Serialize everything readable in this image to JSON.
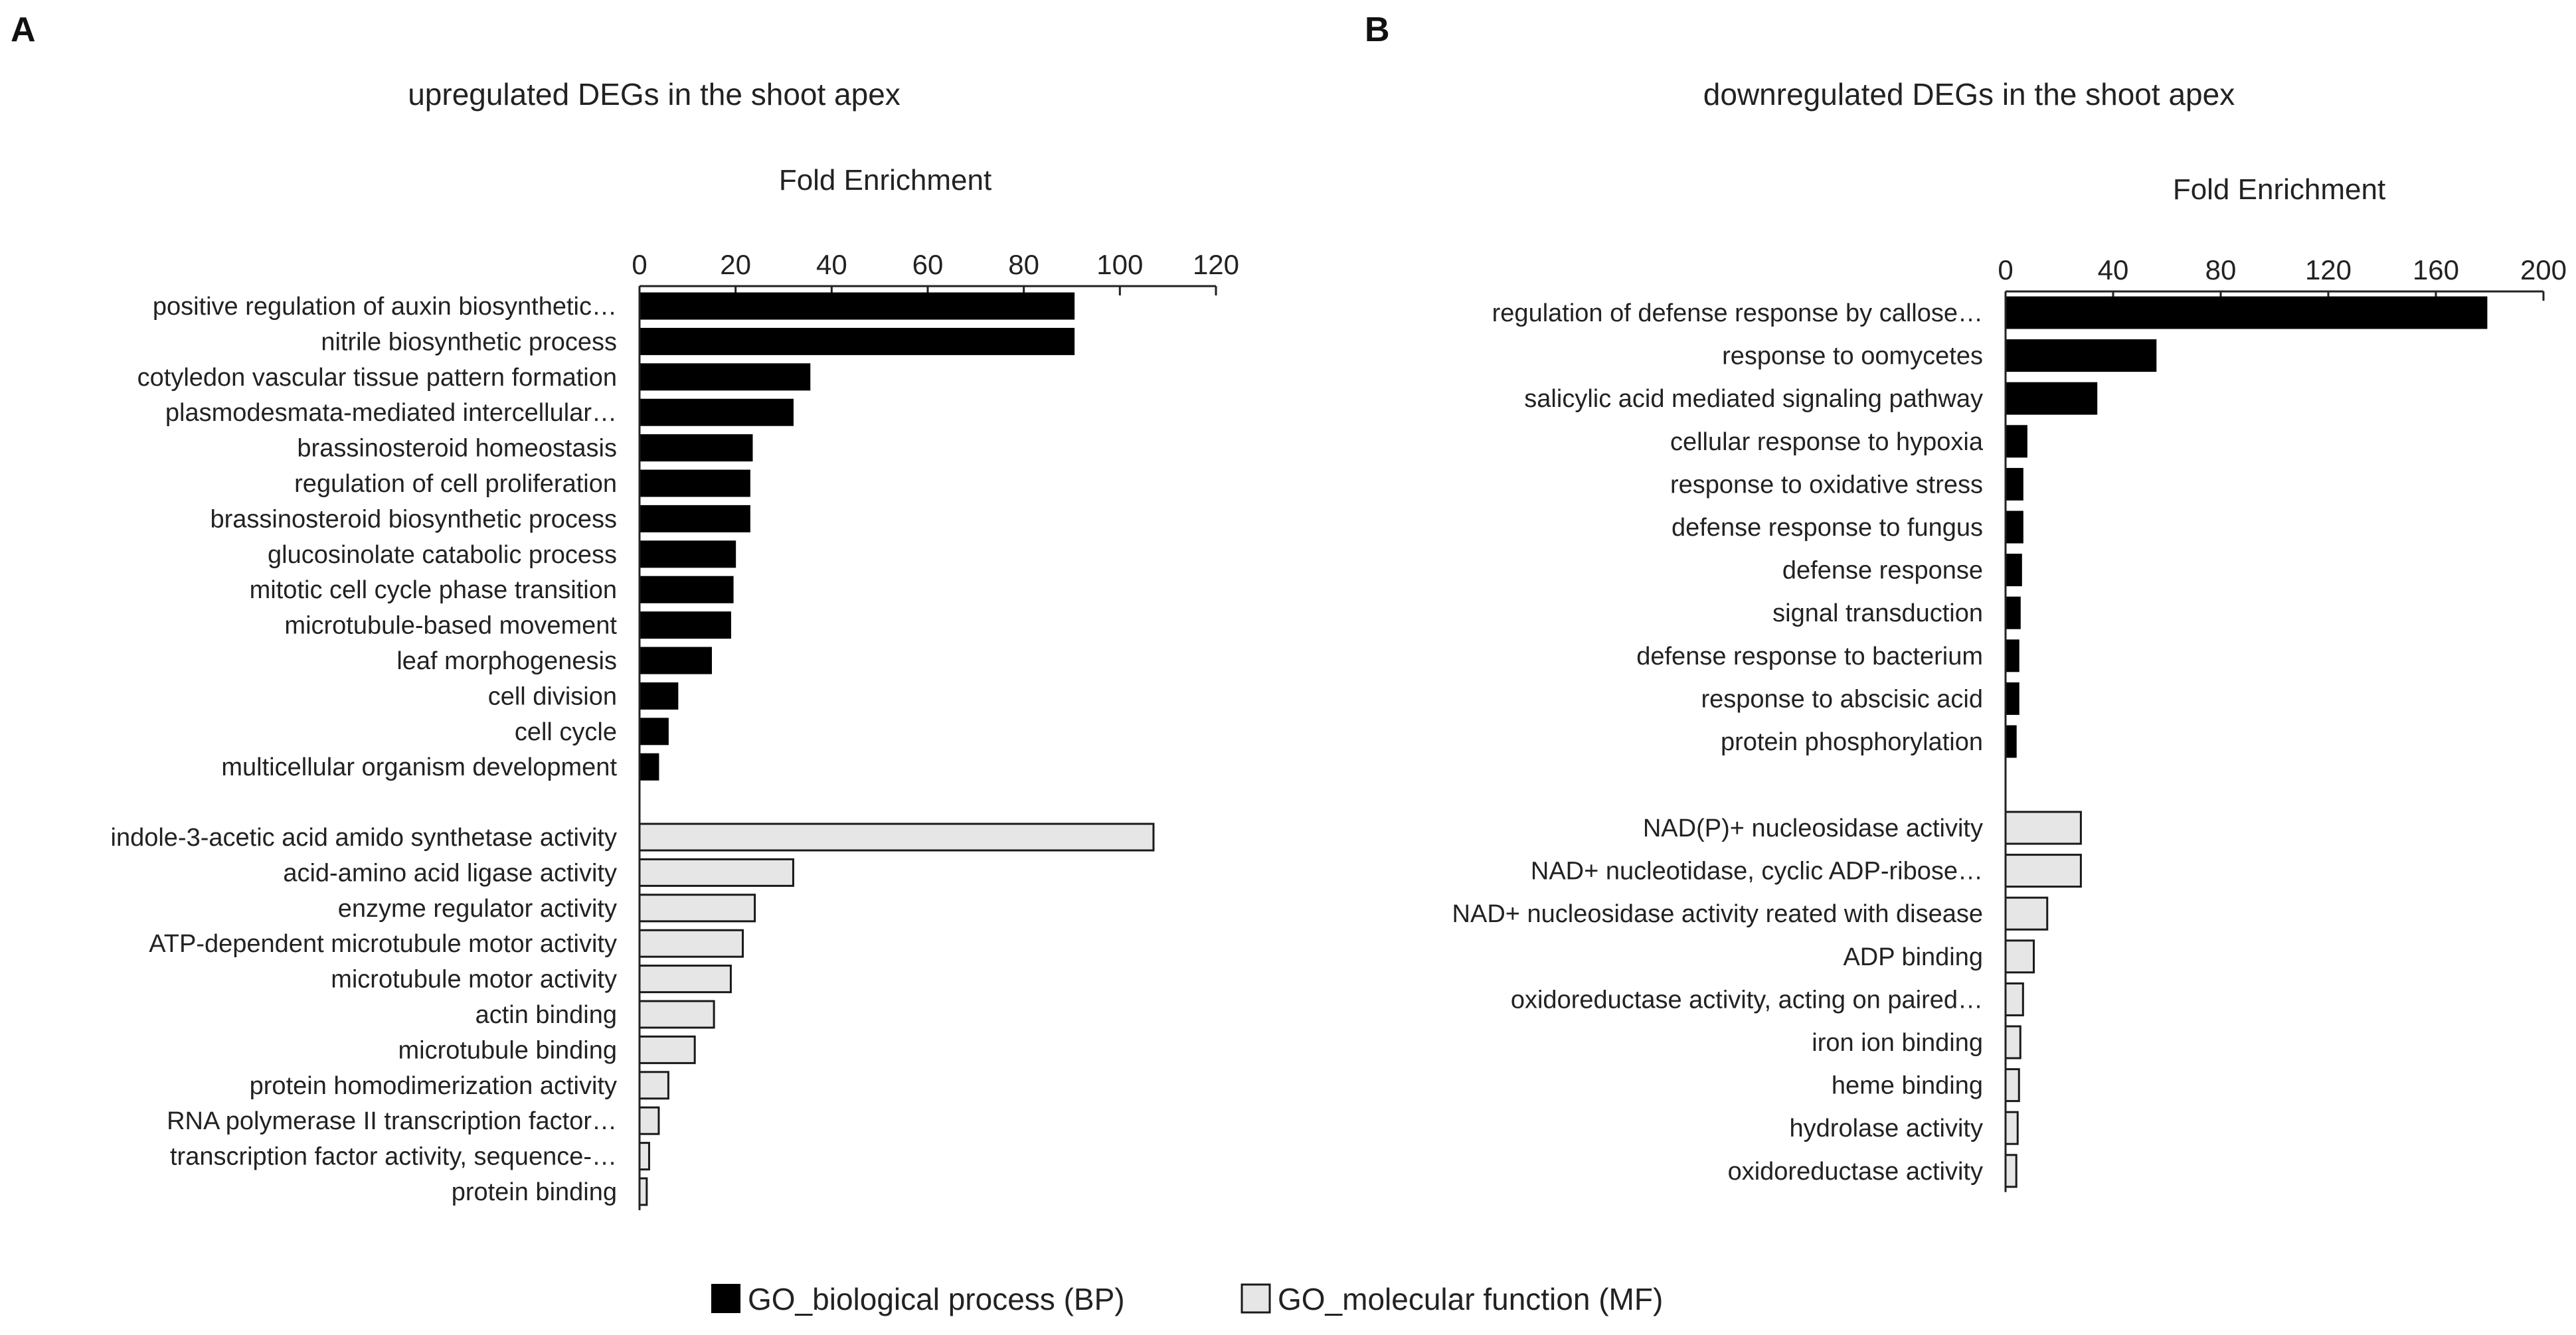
{
  "legend": {
    "bp_label": "GO_biological process (BP)",
    "mf_label": "GO_molecular function (MF)"
  },
  "colors": {
    "bp_fill": "#000000",
    "mf_fill": "#e6e6e6",
    "mf_stroke": "#1a1a1a",
    "axis": "#222222"
  },
  "chart_data": [
    {
      "panel": "A",
      "type": "bar",
      "orientation": "horizontal",
      "title": "upregulated DEGs in the shoot apex",
      "xlabel": "Fold Enrichment",
      "xlim": [
        0,
        120
      ],
      "xticks": [
        0,
        20,
        40,
        60,
        80,
        100,
        120
      ],
      "series": [
        {
          "name": "GO_biological process (BP)",
          "categories": [
            "positive regulation of auxin biosynthetic…",
            "nitrile biosynthetic process",
            "cotyledon vascular tissue pattern formation",
            "plasmodesmata-mediated intercellular…",
            "brassinosteroid homeostasis",
            "regulation of cell proliferation",
            "brassinosteroid biosynthetic process",
            "glucosinolate catabolic process",
            "mitotic cell cycle phase transition",
            "microtubule-based movement",
            "leaf morphogenesis",
            "cell division",
            "cell cycle",
            "multicellular organism development"
          ],
          "values": [
            90.5,
            90.5,
            35.5,
            32,
            23.5,
            23,
            23,
            20,
            19.5,
            19,
            15,
            8,
            6,
            4
          ]
        },
        {
          "name": "GO_molecular function (MF)",
          "categories": [
            "indole-3-acetic acid amido synthetase activity",
            "acid-amino acid ligase activity",
            "enzyme regulator activity",
            "ATP-dependent microtubule motor activity",
            "microtubule motor activity",
            "actin binding",
            "microtubule binding",
            "protein homodimerization activity",
            "RNA polymerase II transcription factor…",
            "transcription factor activity, sequence-…",
            "protein binding"
          ],
          "values": [
            107,
            32,
            24,
            21.5,
            19,
            15.5,
            11.5,
            6,
            4,
            2,
            1.5
          ]
        }
      ]
    },
    {
      "panel": "B",
      "type": "bar",
      "orientation": "horizontal",
      "title": "downregulated DEGs in the shoot apex",
      "xlabel": "Fold Enrichment",
      "xlim": [
        0,
        200
      ],
      "xticks": [
        0,
        40,
        80,
        120,
        160,
        200
      ],
      "series": [
        {
          "name": "GO_biological process (BP)",
          "categories": [
            "regulation of defense response by callose…",
            "response to oomycetes",
            "salicylic acid mediated signaling pathway",
            "cellular response to hypoxia",
            "response to oxidative stress",
            "defense response to fungus",
            "defense response",
            "signal transduction",
            "defense response to bacterium",
            "response to abscisic acid",
            "protein phosphorylation"
          ],
          "values": [
            179,
            56,
            34,
            8,
            6.5,
            6.5,
            6,
            5.5,
            5,
            5,
            4
          ]
        },
        {
          "name": "GO_molecular function (MF)",
          "categories": [
            "NAD(P)+ nucleosidase activity",
            "NAD+ nucleotidase, cyclic ADP-ribose…",
            "NAD+ nucleosidase activity reated with disease",
            "ADP binding",
            "oxidoreductase activity, acting on paired…",
            "iron ion binding",
            "heme binding",
            "hydrolase activity",
            "oxidoreductase activity"
          ],
          "values": [
            28,
            28,
            15.5,
            10.5,
            6.5,
            5.5,
            5,
            4.5,
            4
          ]
        }
      ]
    }
  ]
}
